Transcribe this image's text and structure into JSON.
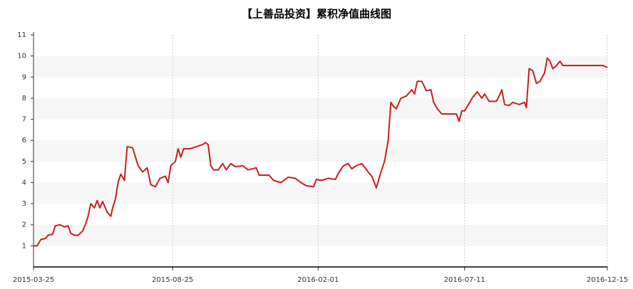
{
  "chart_data": {
    "type": "line",
    "title": "【上善品投资】累积净值曲线图",
    "x": [
      "2015-03-25",
      "2015-03-29",
      "2015-04-02",
      "2015-04-07",
      "2015-04-10",
      "2015-04-15",
      "2015-04-18",
      "2015-04-23",
      "2015-04-28",
      "2015-05-02",
      "2015-05-05",
      "2015-05-09",
      "2015-05-13",
      "2015-05-18",
      "2015-05-21",
      "2015-05-24",
      "2015-05-27",
      "2015-05-31",
      "2015-06-03",
      "2015-06-06",
      "2015-06-09",
      "2015-06-14",
      "2015-06-18",
      "2015-06-20",
      "2015-06-23",
      "2015-06-26",
      "2015-06-29",
      "2015-07-03",
      "2015-07-06",
      "2015-07-12",
      "2015-07-18",
      "2015-07-23",
      "2015-07-28",
      "2015-08-01",
      "2015-08-06",
      "2015-08-11",
      "2015-08-17",
      "2015-08-20",
      "2015-08-23",
      "2015-08-28",
      "2015-08-31",
      "2015-09-03",
      "2015-09-06",
      "2015-09-13",
      "2015-09-20",
      "2015-09-27",
      "2015-09-30",
      "2015-10-03",
      "2015-10-06",
      "2015-10-09",
      "2015-10-14",
      "2015-10-19",
      "2015-10-23",
      "2015-10-28",
      "2015-11-02",
      "2015-11-10",
      "2015-11-16",
      "2015-11-25",
      "2015-11-28",
      "2015-12-09",
      "2015-12-14",
      "2015-12-22",
      "2015-12-30",
      "2016-01-07",
      "2016-01-13",
      "2016-01-19",
      "2016-01-27",
      "2016-01-30",
      "2016-02-05",
      "2016-02-12",
      "2016-02-20",
      "2016-02-24",
      "2016-02-29",
      "2016-03-05",
      "2016-03-09",
      "2016-03-14",
      "2016-03-20",
      "2016-03-27",
      "2016-03-31",
      "2016-04-05",
      "2016-04-10",
      "2016-04-14",
      "2016-04-18",
      "2016-04-21",
      "2016-04-24",
      "2016-04-27",
      "2016-05-02",
      "2016-05-08",
      "2016-05-14",
      "2016-05-17",
      "2016-05-20",
      "2016-05-25",
      "2016-05-30",
      "2016-06-04",
      "2016-06-07",
      "2016-06-11",
      "2016-06-16",
      "2016-06-24",
      "2016-07-02",
      "2016-07-05",
      "2016-07-08",
      "2016-07-11",
      "2016-07-16",
      "2016-07-20",
      "2016-07-25",
      "2016-07-30",
      "2016-08-02",
      "2016-08-07",
      "2016-08-15",
      "2016-08-18",
      "2016-08-21",
      "2016-08-24",
      "2016-08-29",
      "2016-09-02",
      "2016-09-09",
      "2016-09-15",
      "2016-09-17",
      "2016-09-20",
      "2016-09-24",
      "2016-09-28",
      "2016-10-02",
      "2016-10-07",
      "2016-10-10",
      "2016-10-13",
      "2016-10-16",
      "2016-10-19",
      "2016-10-24",
      "2016-10-27",
      "2016-12-10",
      "2016-12-15"
    ],
    "values": [
      1.0,
      1.0,
      1.3,
      1.35,
      1.5,
      1.55,
      1.95,
      2.0,
      1.9,
      1.95,
      1.6,
      1.5,
      1.5,
      1.7,
      2.0,
      2.4,
      3.0,
      2.8,
      3.15,
      2.8,
      3.1,
      2.6,
      2.4,
      2.8,
      3.2,
      4.0,
      4.4,
      4.1,
      5.7,
      5.65,
      4.8,
      4.5,
      4.7,
      3.9,
      3.8,
      4.2,
      4.3,
      4.0,
      4.8,
      5.0,
      5.6,
      5.2,
      5.6,
      5.6,
      5.7,
      5.8,
      5.9,
      5.8,
      4.8,
      4.6,
      4.6,
      4.9,
      4.6,
      4.9,
      4.75,
      4.8,
      4.6,
      4.7,
      4.35,
      4.35,
      4.1,
      4.0,
      4.25,
      4.2,
      4.0,
      3.85,
      3.8,
      4.15,
      4.1,
      4.2,
      4.15,
      4.5,
      4.8,
      4.9,
      4.65,
      4.8,
      4.9,
      4.5,
      4.3,
      3.75,
      4.5,
      5.0,
      6.0,
      7.8,
      7.6,
      7.5,
      8.0,
      8.1,
      8.4,
      8.2,
      8.8,
      8.8,
      8.35,
      8.4,
      7.8,
      7.5,
      7.25,
      7.25,
      7.25,
      6.9,
      7.4,
      7.4,
      7.75,
      8.05,
      8.3,
      8.0,
      8.2,
      7.85,
      7.85,
      8.1,
      8.4,
      7.7,
      7.65,
      7.8,
      7.7,
      7.8,
      7.55,
      9.4,
      9.3,
      8.7,
      8.8,
      9.2,
      9.9,
      9.75,
      9.4,
      9.5,
      9.75,
      9.55,
      9.55,
      9.45
    ],
    "color": "#c8201a",
    "xlim": [
      "2015-03-25",
      "2016-12-15"
    ],
    "xticks": [
      "2015-03-25",
      "2015-08-25",
      "2016-02-01",
      "2016-07-11",
      "2016-12-15"
    ],
    "ylim": [
      0,
      11
    ],
    "yticks": [
      1,
      2,
      3,
      4,
      5,
      6,
      7,
      8,
      9,
      10,
      11
    ],
    "grid": true
  }
}
